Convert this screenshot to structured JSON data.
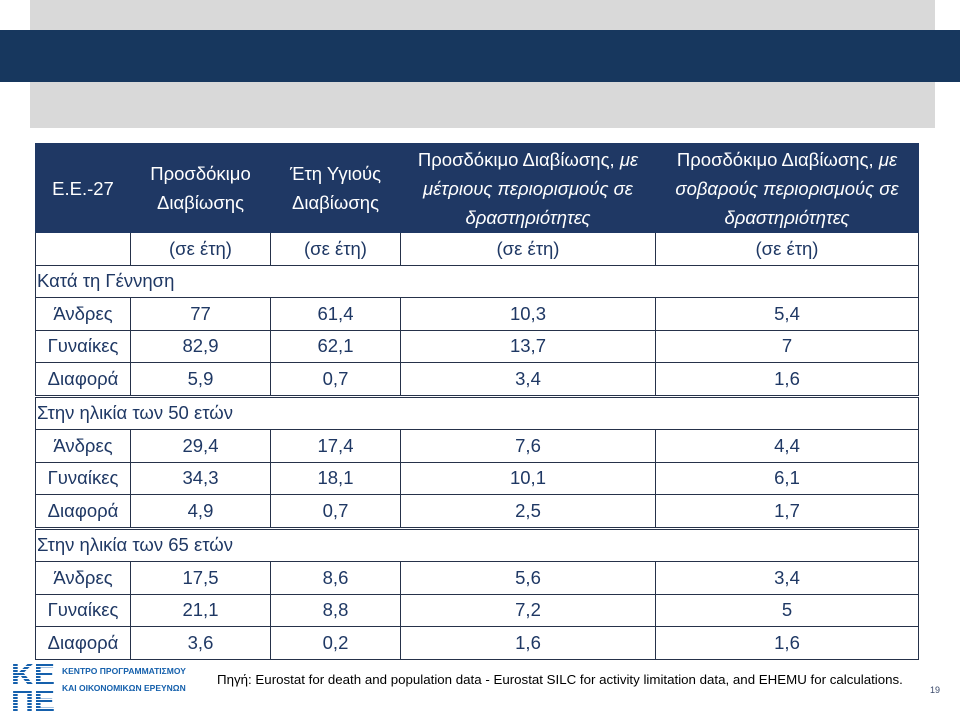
{
  "colors": {
    "band": "#17375E",
    "gray": "#D9D9D9",
    "head_bg": "#1F3864",
    "text": "#1F3864",
    "rule": "#26324A",
    "logo": "#1560AC",
    "source": "#000000",
    "pagenum": "#3B4A6B"
  },
  "table": {
    "header": {
      "region": "Ε.Ε.-27",
      "life_expectancy": [
        "Προσδόκιμο",
        "Διαβίωσης"
      ],
      "healthy_years": [
        "Έτη Υγιούς",
        "Διαβίωσης"
      ],
      "moderate_limitation": {
        "lead": "Προσδόκιμο Διαβίωσης,",
        "lead_italic": "με",
        "lines": [
          "μέτριους περιορισμούς σε",
          "δραστηριότητες"
        ]
      },
      "severe_limitation": {
        "lead": "Προσδόκιμο Διαβίωσης,",
        "lead_italic": "με",
        "lines": [
          "σοβαρούς περιορισμούς σε",
          "δραστηριότητες"
        ]
      }
    },
    "units": [
      "(σε έτη)",
      "(σε έτη)",
      "(σε έτη)",
      "(σε έτη)"
    ],
    "sections": [
      {
        "title": "Κατά τη Γέννηση",
        "rows": [
          {
            "label": "Άνδρες",
            "values": [
              "77",
              "61,4",
              "10,3",
              "5,4"
            ]
          },
          {
            "label": "Γυναίκες",
            "values": [
              "82,9",
              "62,1",
              "13,7",
              "7"
            ]
          },
          {
            "label": "Διαφορά",
            "values": [
              "5,9",
              "0,7",
              "3,4",
              "1,6"
            ]
          }
        ]
      },
      {
        "title": "Στην ηλικία των 50 ετών",
        "rows": [
          {
            "label": "Άνδρες",
            "values": [
              "29,4",
              "17,4",
              "7,6",
              "4,4"
            ]
          },
          {
            "label": "Γυναίκες",
            "values": [
              "34,3",
              "18,1",
              "10,1",
              "6,1"
            ]
          },
          {
            "label": "Διαφορά",
            "values": [
              "4,9",
              "0,7",
              "2,5",
              "1,7"
            ]
          }
        ]
      },
      {
        "title": "Στην ηλικία των 65 ετών",
        "rows": [
          {
            "label": "Άνδρες",
            "values": [
              "17,5",
              "8,6",
              "5,6",
              "3,4"
            ]
          },
          {
            "label": "Γυναίκες",
            "values": [
              "21,1",
              "8,8",
              "7,2",
              "5"
            ]
          },
          {
            "label": "Διαφορά",
            "values": [
              "3,6",
              "0,2",
              "1,6",
              "1,6"
            ]
          }
        ]
      }
    ]
  },
  "footer": {
    "logo_mark": [
      "ΚΕ",
      "ΠΕ"
    ],
    "logo_lines": [
      "ΚΕΝΤΡΟ ΠΡΟΓΡΑΜΜΑΤΙΣΜΟΥ",
      "ΚΑΙ ΟΙΚΟΝΟΜΙΚΩΝ ΕΡΕΥΝΩΝ"
    ],
    "source": "Πηγή: Eurostat for death and population data - Eurostat SILC for activity limitation data, and EHEMU for calculations.",
    "page_number": "19"
  }
}
